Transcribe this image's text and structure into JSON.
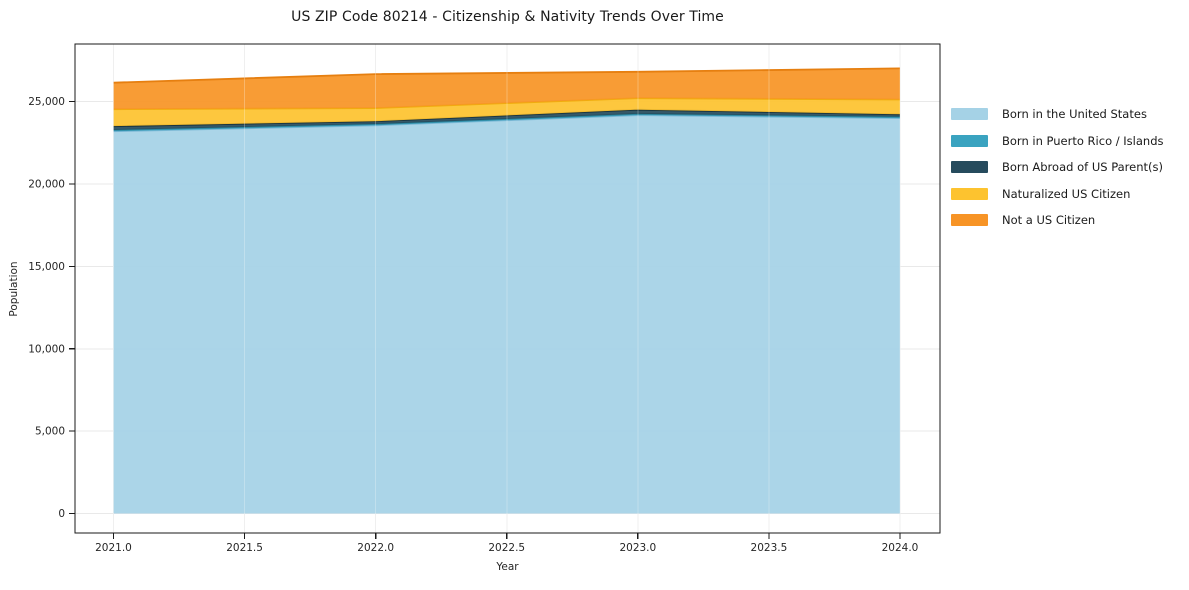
{
  "chart_data": {
    "type": "area",
    "stacked": true,
    "title": "US ZIP Code 80214 - Citizenship & Nativity Trends Over Time",
    "xlabel": "Year",
    "ylabel": "Population",
    "x": [
      2021,
      2022,
      2023,
      2024
    ],
    "series": [
      {
        "name": "Born in the United States",
        "color": "#a5d2e6",
        "edge": "#7db9d6",
        "values": [
          23200,
          23560,
          24180,
          24000
        ]
      },
      {
        "name": "Born in Puerto Rico / Islands",
        "color": "#3aa3c0",
        "edge": "#2c87a0",
        "values": [
          80,
          80,
          80,
          80
        ]
      },
      {
        "name": "Born Abroad of US Parent(s)",
        "color": "#264b5d",
        "edge": "#17323f",
        "values": [
          230,
          170,
          250,
          150
        ]
      },
      {
        "name": "Naturalized US Citizen",
        "color": "#fdc32f",
        "edge": "#f0ad0e",
        "values": [
          1030,
          800,
          700,
          900
        ]
      },
      {
        "name": "Not a US Citizen",
        "color": "#f79426",
        "edge": "#e67f10",
        "values": [
          1610,
          2060,
          1600,
          1890
        ]
      }
    ],
    "xlim": [
      2020.85,
      2024.15
    ],
    "ylim": [
      -1200,
      28500
    ],
    "grid": true,
    "legend_position": "right-outside",
    "axes": {
      "x_ticks": [
        {
          "v": 2021.0,
          "label": "2021.0"
        },
        {
          "v": 2021.5,
          "label": "2021.5"
        },
        {
          "v": 2022.0,
          "label": "2022.0"
        },
        {
          "v": 2022.5,
          "label": "2022.5"
        },
        {
          "v": 2023.0,
          "label": "2023.0"
        },
        {
          "v": 2023.5,
          "label": "2023.5"
        },
        {
          "v": 2024.0,
          "label": "2024.0"
        }
      ],
      "y_ticks": [
        {
          "v": 0,
          "label": "0"
        },
        {
          "v": 5000,
          "label": "5,000"
        },
        {
          "v": 10000,
          "label": "10,000"
        },
        {
          "v": 15000,
          "label": "15,000"
        },
        {
          "v": 20000,
          "label": "20,000"
        },
        {
          "v": 25000,
          "label": "25,000"
        }
      ]
    },
    "colors": {
      "spine": "#1a1a1a",
      "gridline": "#e9e9e9",
      "background": "#ffffff"
    }
  }
}
